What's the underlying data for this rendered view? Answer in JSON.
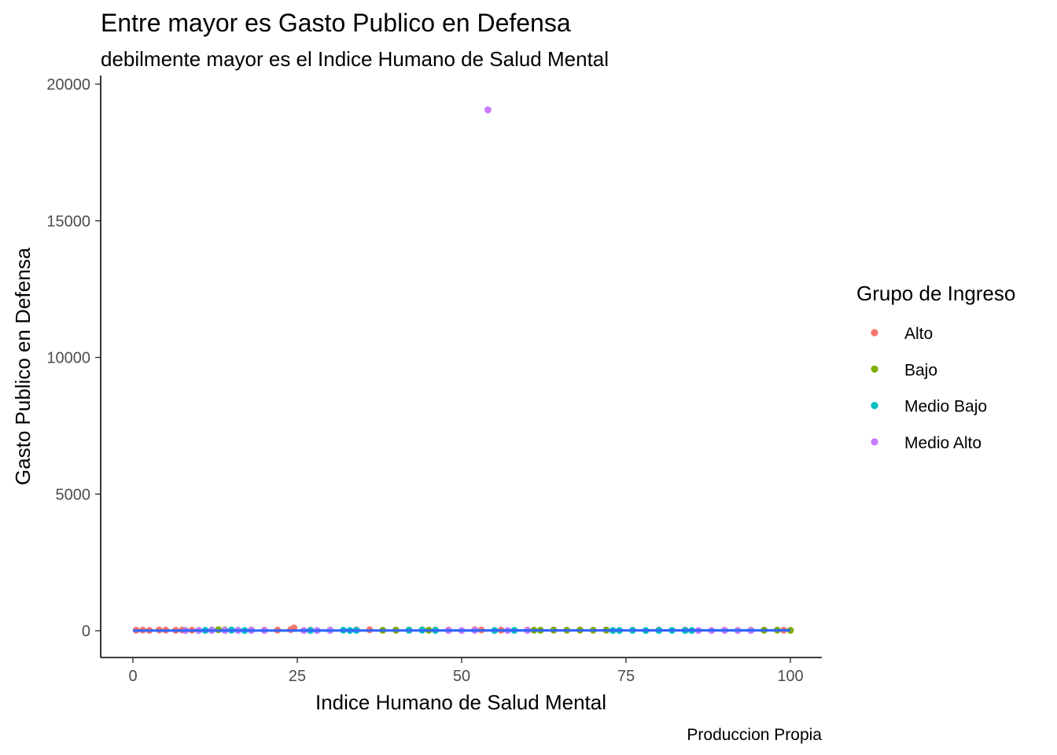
{
  "chart_data": {
    "type": "scatter",
    "title": "Entre mayor es Gasto Publico en Defensa",
    "subtitle": "debilmente mayor es el Indice Humano de Salud Mental",
    "xlabel": "Indice Humano de Salud Mental",
    "ylabel": "Gasto Publico en Defensa",
    "caption": "Produccion Propia",
    "xlim": [
      0,
      100
    ],
    "ylim": [
      0,
      20000
    ],
    "x_ticks": [
      "0",
      "25",
      "50",
      "75",
      "100"
    ],
    "y_ticks": [
      "0",
      "5000",
      "10000",
      "15000",
      "20000"
    ],
    "grid": false,
    "legend": {
      "title": "Grupo de Ingreso",
      "position": "right"
    },
    "series": [
      {
        "name": "Alto",
        "color": "#F8766D",
        "points": [
          [
            0.5,
            20
          ],
          [
            1.5,
            25
          ],
          [
            2.5,
            15
          ],
          [
            4,
            30
          ],
          [
            5,
            22
          ],
          [
            6.5,
            18
          ],
          [
            7.5,
            25
          ],
          [
            9,
            20
          ],
          [
            12,
            30
          ],
          [
            14,
            25
          ],
          [
            16,
            20
          ],
          [
            18,
            28
          ],
          [
            20,
            22
          ],
          [
            22,
            26
          ],
          [
            24.5,
            100
          ],
          [
            24,
            40
          ],
          [
            27,
            20
          ],
          [
            30,
            22
          ],
          [
            34,
            30
          ],
          [
            36,
            35
          ],
          [
            40,
            20
          ],
          [
            44,
            25
          ],
          [
            48,
            28
          ],
          [
            52,
            40
          ],
          [
            53,
            30
          ],
          [
            56,
            20
          ],
          [
            60,
            24
          ],
          [
            64,
            26
          ],
          [
            68,
            22
          ],
          [
            72,
            25
          ],
          [
            76,
            20
          ],
          [
            80,
            22
          ],
          [
            84,
            25
          ],
          [
            90,
            20
          ],
          [
            96,
            22
          ],
          [
            99,
            20
          ]
        ]
      },
      {
        "name": "Bajo",
        "color": "#7CAE00",
        "points": [
          [
            8,
            15
          ],
          [
            13,
            40
          ],
          [
            14,
            30
          ],
          [
            15,
            20
          ],
          [
            38,
            18
          ],
          [
            40,
            22
          ],
          [
            42,
            25
          ],
          [
            44,
            30
          ],
          [
            45,
            20
          ],
          [
            46,
            25
          ],
          [
            61,
            20
          ],
          [
            62,
            18
          ],
          [
            64,
            22
          ],
          [
            66,
            20
          ],
          [
            68,
            24
          ],
          [
            70,
            20
          ],
          [
            72,
            22
          ],
          [
            92,
            15
          ],
          [
            94,
            20
          ],
          [
            96,
            18
          ],
          [
            98,
            22
          ],
          [
            100,
            15
          ]
        ]
      },
      {
        "name": "Medio Bajo",
        "color": "#00BFC4",
        "points": [
          [
            10,
            10
          ],
          [
            11,
            15
          ],
          [
            12,
            20
          ],
          [
            14,
            12
          ],
          [
            15,
            25
          ],
          [
            16,
            18
          ],
          [
            17,
            10
          ],
          [
            18,
            15
          ],
          [
            27,
            10
          ],
          [
            28,
            12
          ],
          [
            30,
            15
          ],
          [
            32,
            20
          ],
          [
            33,
            10
          ],
          [
            34,
            15
          ],
          [
            42,
            18
          ],
          [
            44,
            20
          ],
          [
            46,
            15
          ],
          [
            55,
            12
          ],
          [
            58,
            15
          ],
          [
            73,
            10
          ],
          [
            74,
            12
          ],
          [
            76,
            15
          ],
          [
            78,
            10
          ],
          [
            80,
            12
          ],
          [
            82,
            15
          ],
          [
            84,
            10
          ],
          [
            85,
            8
          ]
        ]
      },
      {
        "name": "Medio Alto",
        "color": "#C77CFF",
        "points": [
          [
            8,
            10
          ],
          [
            10,
            15
          ],
          [
            12,
            12
          ],
          [
            14,
            10
          ],
          [
            16,
            15
          ],
          [
            18,
            12
          ],
          [
            20,
            10
          ],
          [
            26,
            12
          ],
          [
            28,
            10
          ],
          [
            30,
            15
          ],
          [
            48,
            12
          ],
          [
            50,
            10
          ],
          [
            52,
            15
          ],
          [
            54,
            19060
          ],
          [
            57,
            12
          ],
          [
            60,
            10
          ],
          [
            86,
            8
          ],
          [
            88,
            10
          ],
          [
            90,
            12
          ],
          [
            92,
            10
          ],
          [
            94,
            8
          ]
        ]
      }
    ],
    "trend_line": {
      "color": "#3366FF",
      "x": [
        0,
        100
      ],
      "y": [
        5,
        15
      ]
    }
  }
}
